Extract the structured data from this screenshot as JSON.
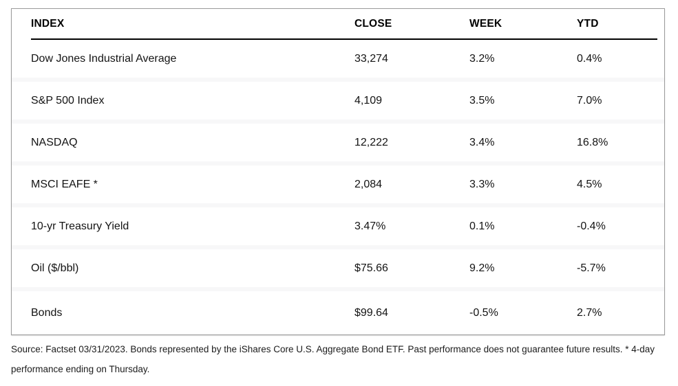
{
  "chart_data": {
    "type": "table",
    "columns": [
      "INDEX",
      "CLOSE",
      "WEEK",
      "YTD"
    ],
    "rows": [
      [
        "Dow Jones Industrial Average",
        "33,274",
        "3.2%",
        "0.4%"
      ],
      [
        "S&P 500 Index",
        "4,109",
        "3.5%",
        "7.0%"
      ],
      [
        "NASDAQ",
        "12,222",
        "3.4%",
        "16.8%"
      ],
      [
        "MSCI EAFE *",
        "2,084",
        "3.3%",
        "4.5%"
      ],
      [
        "10-yr Treasury Yield",
        "3.47%",
        "0.1%",
        "-0.4%"
      ],
      [
        "Oil ($/bbl)",
        "$75.66",
        "9.2%",
        "-5.7%"
      ],
      [
        "Bonds",
        "$99.64",
        "-0.5%",
        "2.7%"
      ]
    ],
    "layout": {
      "grid": "horizontal-row-separators",
      "header_rule": true
    }
  },
  "footnote": {
    "line1": "Source: Factset 03/31/2023. Bonds represented by the iShares Core U.S. Aggregate Bond ETF. Past performance does not guarantee future results. * 4-day",
    "line2": "performance ending on Thursday."
  },
  "colors": {
    "table_border": "#9a9a9a",
    "header_rule": "#000000",
    "row_separator": "#f7f7f8",
    "text": "#131313"
  }
}
